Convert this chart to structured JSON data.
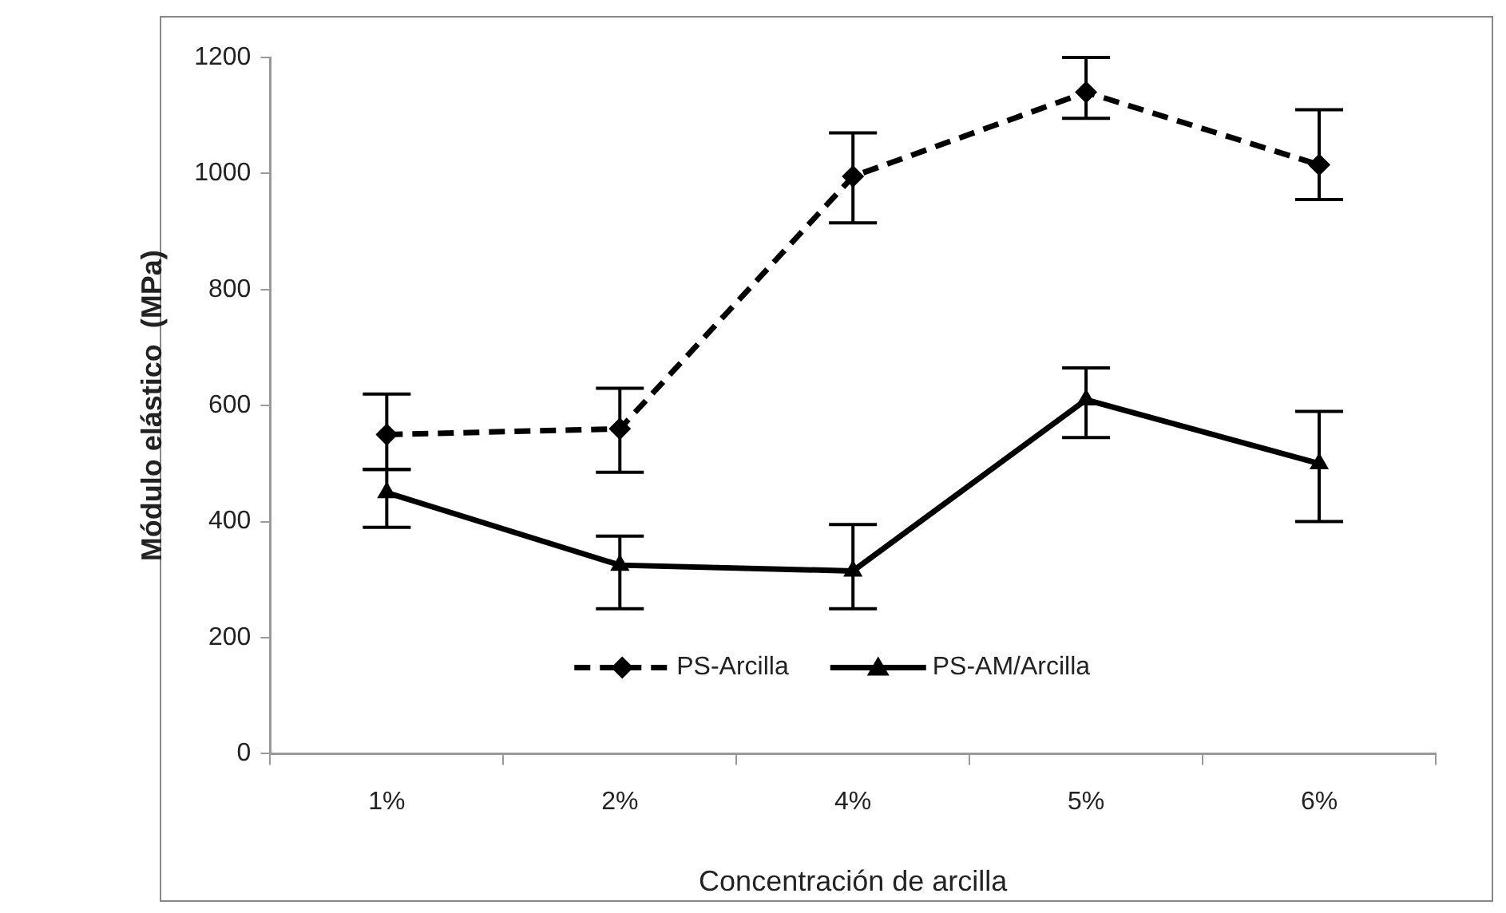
{
  "chart_data": {
    "type": "line",
    "xlabel": "Concentración de arcilla",
    "ylabel": "Módulo elástico  (MPa)",
    "categories": [
      "1%",
      "2%",
      "4%",
      "5%",
      "6%"
    ],
    "ylim": [
      0,
      1200
    ],
    "yticks": [
      0,
      200,
      400,
      600,
      800,
      1000,
      1200
    ],
    "grid": false,
    "legend": "bottom",
    "series": [
      {
        "name": "PS-Arcilla",
        "color": "#000000",
        "marker": "diamond",
        "line_style": "dashed",
        "values": [
          550,
          560,
          995,
          1140,
          1015
        ],
        "errors": [
          [
            490,
            620
          ],
          [
            485,
            630
          ],
          [
            915,
            1070
          ],
          [
            1095,
            1200
          ],
          [
            955,
            1110
          ]
        ]
      },
      {
        "name": "PS-AM/Arcilla",
        "color": "#000000",
        "marker": "triangle",
        "line_style": "solid",
        "values": [
          450,
          325,
          315,
          610,
          500
        ],
        "errors": [
          [
            390,
            490
          ],
          [
            250,
            375
          ],
          [
            250,
            395
          ],
          [
            545,
            665
          ],
          [
            400,
            590
          ]
        ]
      }
    ]
  }
}
